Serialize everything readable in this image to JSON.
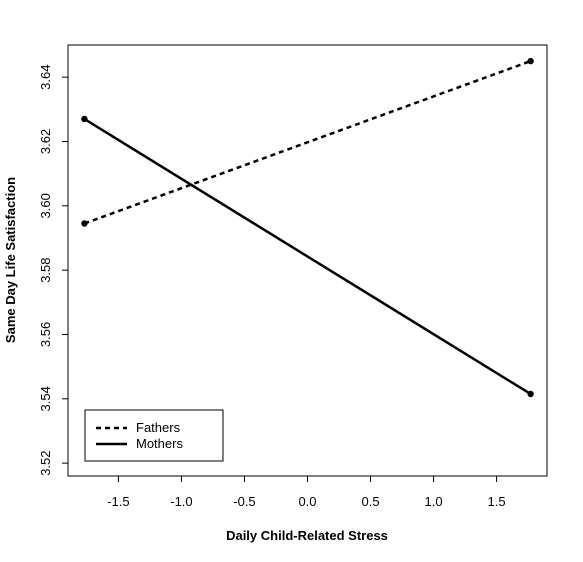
{
  "chart_data": {
    "type": "line",
    "title": "",
    "xlabel": "Daily Child-Related Stress",
    "ylabel": "Same Day Life Satisfaction",
    "xlim": [
      -1.9,
      1.9
    ],
    "ylim": [
      3.516,
      3.65
    ],
    "x_ticks": [
      -1.5,
      -1.0,
      -0.5,
      0.0,
      0.5,
      1.0,
      1.5
    ],
    "x_tick_labels": [
      "-1.5",
      "-1.0",
      "-0.5",
      "0.0",
      "0.5",
      "1.0",
      "1.5"
    ],
    "y_ticks": [
      3.52,
      3.54,
      3.56,
      3.58,
      3.6,
      3.62,
      3.64
    ],
    "y_tick_labels": [
      "3.52",
      "3.54",
      "3.56",
      "3.58",
      "3.60",
      "3.62",
      "3.64"
    ],
    "grid": false,
    "legend_position": "bottom-left",
    "series": [
      {
        "name": "Fathers",
        "line_style": "dashed",
        "color": "#000000",
        "x": [
          -1.77,
          1.77
        ],
        "y": [
          3.5945,
          3.645
        ]
      },
      {
        "name": "Mothers",
        "line_style": "solid",
        "color": "#000000",
        "x": [
          -1.77,
          1.77
        ],
        "y": [
          3.627,
          3.5415
        ]
      }
    ]
  }
}
